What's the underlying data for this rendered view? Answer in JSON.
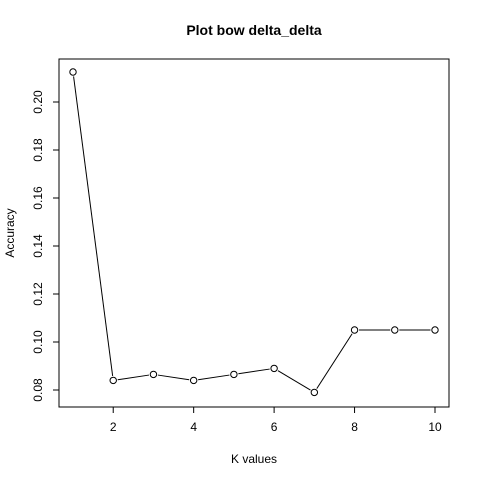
{
  "chart_data": {
    "type": "line",
    "title": "Plot bow delta_delta",
    "xlabel": "K values",
    "ylabel": "Accuracy",
    "x": [
      1,
      2,
      3,
      4,
      5,
      6,
      7,
      8,
      9,
      10
    ],
    "series": [
      {
        "values": [
          0.2125,
          0.084,
          0.0865,
          0.084,
          0.0865,
          0.089,
          0.079,
          0.105,
          0.105,
          0.105
        ]
      }
    ],
    "xlim": [
      1,
      10
    ],
    "ylim": [
      0.08,
      0.2
    ],
    "x_ticks": [
      2,
      4,
      6,
      8,
      10
    ],
    "y_ticks": [
      0.08,
      0.1,
      0.12,
      0.14,
      0.16,
      0.18,
      0.2
    ],
    "x_tick_labels": [
      "2",
      "4",
      "6",
      "8",
      "10"
    ],
    "y_tick_labels": [
      "0.08",
      "0.10",
      "0.12",
      "0.14",
      "0.16",
      "0.18",
      "0.20"
    ],
    "marker": "open-circle",
    "line_color": "#000000",
    "grid": false,
    "legend": "none"
  }
}
